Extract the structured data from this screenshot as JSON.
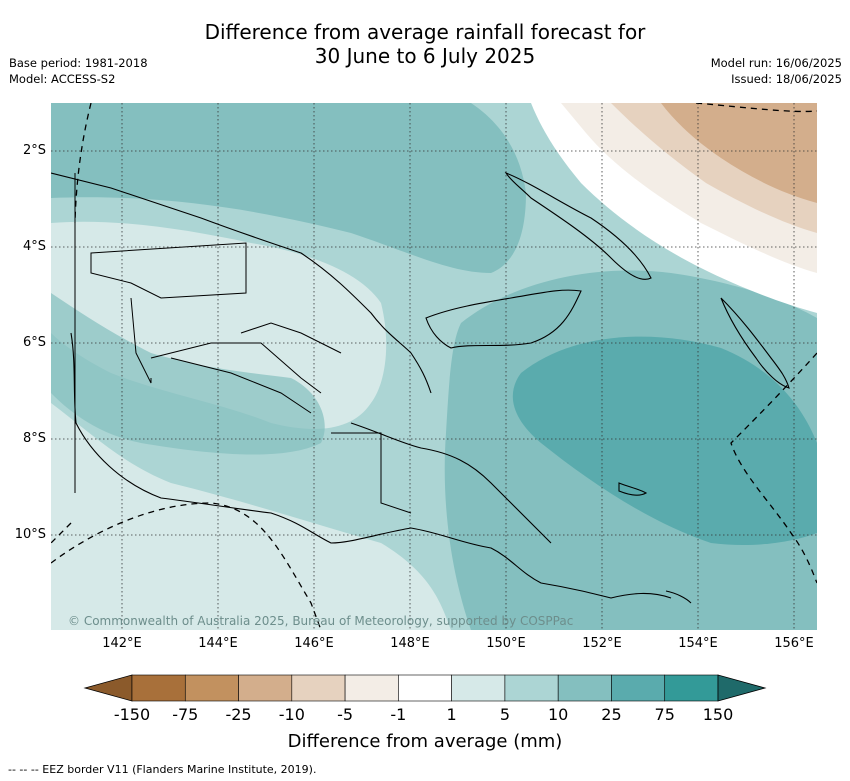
{
  "header": {
    "title_line1": "Difference from average rainfall forecast for",
    "title_line2": "30 June to 6 July 2025",
    "base_period": "Base period: 1981-2018",
    "model": "Model: ACCESS-S2",
    "model_run": "Model run: 16/06/2025",
    "issued": "Issued: 18/06/2025"
  },
  "map": {
    "lat_labels": [
      "2°S",
      "4°S",
      "6°S",
      "8°S",
      "10°S"
    ],
    "lon_labels": [
      "142°E",
      "144°E",
      "146°E",
      "148°E",
      "150°E",
      "152°E",
      "154°E",
      "156°E"
    ],
    "lon_range": [
      141,
      156.5
    ],
    "lat_range": [
      -1,
      -11.7
    ],
    "credit": "© Commonwealth of Australia 2025, Bureau of Meteorology, supported by COSPPac"
  },
  "legend": {
    "title": "Difference from average (mm)",
    "tick_labels": [
      "-150",
      "-75",
      "-25",
      "-10",
      "-5",
      "-1",
      "1",
      "5",
      "10",
      "25",
      "75",
      "150"
    ],
    "colors": [
      "#8b5a2b",
      "#a8703a",
      "#c2915f",
      "#d3ae8c",
      "#e6d2bf",
      "#f3ede6",
      "#ffffff",
      "#d6e9e8",
      "#acd5d4",
      "#84bfbf",
      "#5aabad",
      "#339a98",
      "#1f6a6a"
    ]
  },
  "footer": {
    "eez_note": "--  --  -- EEZ border V11 (Flanders Marine Institute, 2019)."
  }
}
